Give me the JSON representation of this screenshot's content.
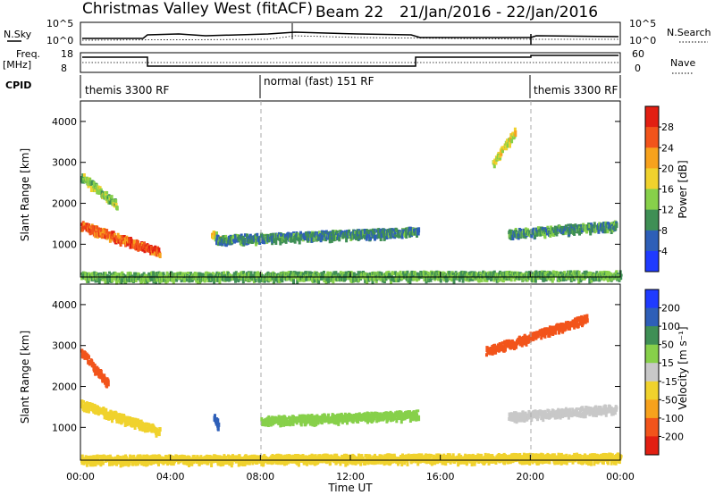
{
  "header": {
    "station": "Christmas Valley West (fitACF)",
    "beam": "Beam 22",
    "dates": "21/Jan/2016 - 22/Jan/2016"
  },
  "strip_labels": {
    "nsky": "N.Sky",
    "nsearch": "N.Search",
    "freq": "Freq.",
    "freq_unit": "[MHz]",
    "nave": "Nave",
    "cpid": "CPID",
    "left_nsky_ticks": [
      "10^5",
      "10^0"
    ],
    "right_nsky_ticks": [
      "10^5",
      "10^0"
    ],
    "left_freq_ticks": [
      "18",
      "8"
    ],
    "right_nave_ticks": [
      "60",
      "0"
    ]
  },
  "cpid_segments": [
    {
      "label": "themis 3300 RF",
      "start_hour": 0,
      "end_hour": 8
    },
    {
      "label": "normal (fast) 151 RF",
      "start_hour": 8,
      "end_hour": 20
    },
    {
      "label": "themis 3300 RF",
      "start_hour": 20,
      "end_hour": 24
    }
  ],
  "xaxis": {
    "label": "Time UT",
    "ticks": [
      "00:00",
      "04:00",
      "08:00",
      "12:00",
      "16:00",
      "20:00",
      "00:00"
    ]
  },
  "panels": {
    "power": {
      "ylabel": "Slant Range [km]",
      "yticks": [
        "1000",
        "2000",
        "3000",
        "4000"
      ],
      "colorbar_label": "Power [dB]",
      "colorbar_ticks": [
        "4",
        "8",
        "12",
        "16",
        "20",
        "24",
        "28"
      ]
    },
    "velocity": {
      "ylabel": "Slant Range [km]",
      "yticks": [
        "1000",
        "2000",
        "3000",
        "4000"
      ],
      "colorbar_label": "Velocity [m s⁻¹]",
      "colorbar_ticks": [
        "200",
        "100",
        "50",
        "15",
        "-15",
        "-50",
        "-100",
        "-200"
      ]
    }
  },
  "chart_data": [
    {
      "type": "heatmap",
      "quantity": "Power",
      "unit": "dB",
      "x_range_hours": [
        0,
        24
      ],
      "y_range_km": [
        200,
        4500
      ],
      "color_scale": [
        {
          "max": 4,
          "color": "#1f3bff"
        },
        {
          "max": 8,
          "color": "#2e5fb8"
        },
        {
          "max": 12,
          "color": "#3f8f55"
        },
        {
          "max": 16,
          "color": "#87d04a"
        },
        {
          "max": 20,
          "color": "#f0d22d"
        },
        {
          "max": 24,
          "color": "#f7a21d"
        },
        {
          "max": 28,
          "color": "#f2541b"
        },
        {
          "max": 32,
          "color": "#e21f12"
        }
      ],
      "features": [
        {
          "t0": 0.0,
          "t1": 3.5,
          "r0": 1500,
          "r1": 850,
          "value": 26
        },
        {
          "t0": 0.0,
          "t1": 1.6,
          "r0": 2700,
          "r1": 2000,
          "value": 14
        },
        {
          "t0": 5.8,
          "t1": 6.2,
          "r0": 1300,
          "r1": 1150,
          "value": 18
        },
        {
          "t0": 6.0,
          "t1": 15.0,
          "r0": 1150,
          "r1": 1350,
          "value": 9
        },
        {
          "t0": 19.0,
          "t1": 23.8,
          "r0": 1300,
          "r1": 1500,
          "value": 10
        },
        {
          "t0": 18.3,
          "t1": 19.3,
          "r0": 3000,
          "r1": 3800,
          "value": 17
        },
        {
          "t0": 0.0,
          "t1": 24.0,
          "r0": 250,
          "r1": 280,
          "value": 12
        }
      ]
    },
    {
      "type": "heatmap",
      "quantity": "Velocity",
      "unit": "m s⁻¹",
      "x_range_hours": [
        0,
        24
      ],
      "y_range_km": [
        200,
        4500
      ],
      "color_scale": [
        {
          "max": -200,
          "color": "#e21f12"
        },
        {
          "max": -100,
          "color": "#f2541b"
        },
        {
          "max": -50,
          "color": "#f7a21d"
        },
        {
          "max": -15,
          "color": "#f0d22d"
        },
        {
          "max": 15,
          "color": "#c8c8c8"
        },
        {
          "max": 50,
          "color": "#87d04a"
        },
        {
          "max": 100,
          "color": "#3f8f55"
        },
        {
          "max": 200,
          "color": "#2e5fb8"
        },
        {
          "max": 300,
          "color": "#1f3bff"
        }
      ],
      "features": [
        {
          "t0": 0.0,
          "t1": 3.5,
          "r0": 1600,
          "r1": 950,
          "value": -40
        },
        {
          "t0": 0.0,
          "t1": 1.2,
          "r0": 2900,
          "r1": 2100,
          "value": -150
        },
        {
          "t0": 5.9,
          "t1": 6.1,
          "r0": 1300,
          "r1": 1100,
          "value": 150
        },
        {
          "t0": 8.0,
          "t1": 15.0,
          "r0": 1200,
          "r1": 1350,
          "value": 20
        },
        {
          "t0": 19.0,
          "t1": 23.8,
          "r0": 1300,
          "r1": 1500,
          "value": 0
        },
        {
          "t0": 18.0,
          "t1": 22.5,
          "r0": 2900,
          "r1": 3700,
          "value": -180
        },
        {
          "t0": 0.0,
          "t1": 24.0,
          "r0": 250,
          "r1": 300,
          "value": -30
        }
      ]
    }
  ]
}
